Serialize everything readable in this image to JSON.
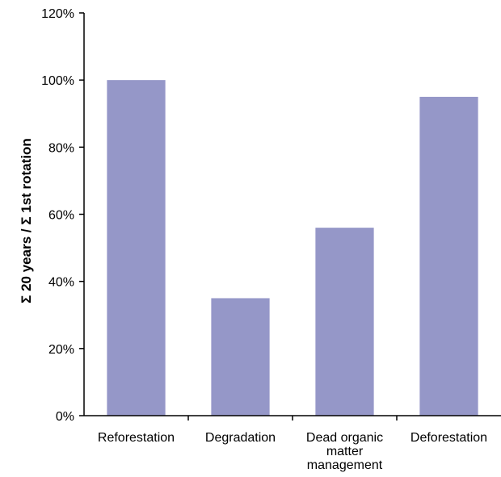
{
  "chart_data": {
    "type": "bar",
    "categories": [
      [
        "Reforestation"
      ],
      [
        "Degradation"
      ],
      [
        "Dead organic",
        "matter",
        "management"
      ],
      [
        "Deforestation"
      ]
    ],
    "values": [
      100,
      35,
      56,
      95
    ],
    "ylabel": "Σ 20 years / Σ 1st rotation",
    "ylim": [
      0,
      120
    ],
    "yticks": [
      0,
      20,
      40,
      60,
      80,
      100,
      120
    ],
    "ytick_suffix": "%",
    "bar_color": "#9597c8",
    "grid": false,
    "legend": "none"
  }
}
